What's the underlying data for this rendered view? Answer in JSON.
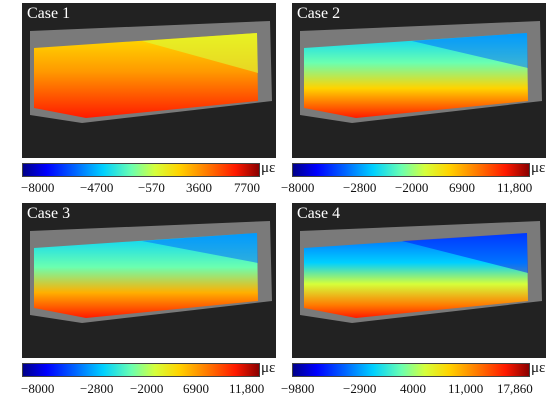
{
  "unit": "με",
  "panels": [
    {
      "title": "Case 1",
      "ticks": [
        "−8000",
        "−4700",
        "−570",
        "3600",
        "7700"
      ]
    },
    {
      "title": "Case 2",
      "ticks": [
        "−8000",
        "−2800",
        "−2000",
        "6900",
        "11,800"
      ]
    },
    {
      "title": "Case 3",
      "ticks": [
        "−8000",
        "−2800",
        "−2000",
        "6900",
        "11,800"
      ]
    },
    {
      "title": "Case 4",
      "ticks": [
        "−9800",
        "−2900",
        "4000",
        "11,000",
        "17,860"
      ]
    }
  ],
  "colors": {
    "background": "#222222",
    "speckle_band": "#8a8a8a",
    "colormap": [
      "#00008a",
      "#0000ff",
      "#00d0ff",
      "#d6ff3a",
      "#ffd400",
      "#ff1a00",
      "#8a0000"
    ]
  }
}
